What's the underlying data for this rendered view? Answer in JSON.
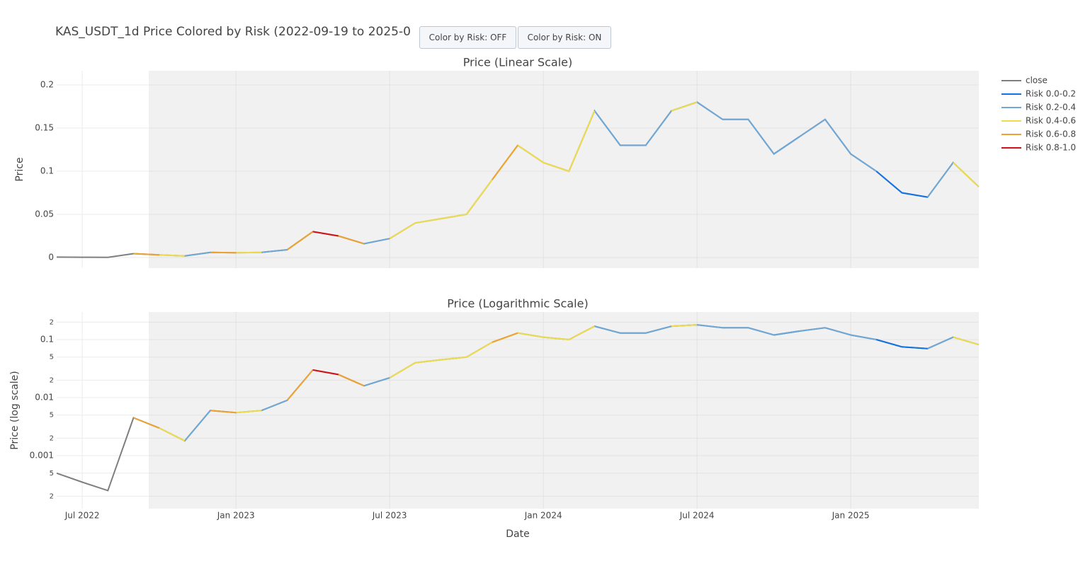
{
  "chart_data": {
    "type": "line",
    "title": "KAS_USDT_1d Price Colored by Risk (2022-09-19 to 2025-0",
    "xlabel": "Date",
    "x": [
      "2022-06",
      "2022-07",
      "2022-08",
      "2022-09",
      "2022-10",
      "2022-11",
      "2022-12",
      "2023-01",
      "2023-02",
      "2023-03",
      "2023-04",
      "2023-05",
      "2023-06",
      "2023-07",
      "2023-08",
      "2023-09",
      "2023-10",
      "2023-11",
      "2023-12",
      "2024-01",
      "2024-02",
      "2024-03",
      "2024-04",
      "2024-05",
      "2024-06",
      "2024-07",
      "2024-08",
      "2024-09",
      "2024-10",
      "2024-11",
      "2024-12",
      "2025-01",
      "2025-02",
      "2025-03",
      "2025-04",
      "2025-05",
      "2025-06"
    ],
    "xlim": [
      "2022-06",
      "2025-06"
    ],
    "xticks": [
      {
        "value": "2022-07",
        "label": "Jul 2022"
      },
      {
        "value": "2023-01",
        "label": "Jan 2023"
      },
      {
        "value": "2023-07",
        "label": "Jul 2023"
      },
      {
        "value": "2024-01",
        "label": "Jan 2024"
      },
      {
        "value": "2024-07",
        "label": "Jul 2024"
      },
      {
        "value": "2025-01",
        "label": "Jan 2025"
      }
    ],
    "panels": [
      {
        "title": "Price (Linear Scale)",
        "ylabel": "Price",
        "log": false,
        "ylim": [
          -0.0123,
          0.2164
        ],
        "yticks": [
          0,
          0.05,
          0.1,
          0.15,
          0.2
        ]
      },
      {
        "title": "Price (Logarithmic Scale)",
        "ylabel": "Price (log scale)",
        "log": true,
        "ylim": [
          0.000122,
          0.299
        ],
        "yticks": [
          {
            "value": 0.0002,
            "label": "2"
          },
          {
            "value": 0.0005,
            "label": "5"
          },
          0.001,
          {
            "value": 0.002,
            "label": "2"
          },
          {
            "value": 0.005,
            "label": "5"
          },
          0.01,
          {
            "value": 0.02,
            "label": "2"
          },
          {
            "value": 0.05,
            "label": "5"
          },
          0.1,
          {
            "value": 0.2,
            "label": "2"
          }
        ]
      }
    ],
    "series": [
      {
        "name": "close",
        "color": "#7f7f7f",
        "values": [
          0.0005,
          0.00035,
          0.00025,
          0.0045,
          0.003,
          0.0018,
          0.006,
          0.0055,
          0.006,
          0.009,
          0.03,
          0.025,
          0.016,
          0.022,
          0.04,
          0.045,
          0.05,
          0.09,
          0.13,
          0.11,
          0.1,
          0.17,
          0.13,
          0.13,
          0.17,
          0.18,
          0.16,
          0.16,
          0.12,
          0.14,
          0.16,
          0.12,
          0.1,
          0.075,
          0.07,
          0.11,
          0.082
        ]
      },
      {
        "name": "Risk 0.0-0.2",
        "color": "#1173e6",
        "values": [
          null,
          null,
          null,
          null,
          null,
          null,
          null,
          null,
          null,
          null,
          null,
          null,
          null,
          null,
          null,
          null,
          null,
          null,
          null,
          null,
          null,
          null,
          null,
          null,
          null,
          null,
          null,
          null,
          0.12,
          0.14,
          null,
          null,
          0.1,
          0.075,
          0.07,
          null,
          null
        ]
      },
      {
        "name": "Risk 0.2-0.4",
        "color": "#6fa8d6",
        "values": [
          null,
          null,
          null,
          null,
          null,
          0.0018,
          0.006,
          null,
          0.006,
          0.009,
          null,
          null,
          0.016,
          0.022,
          null,
          null,
          null,
          null,
          null,
          null,
          null,
          0.17,
          0.13,
          0.13,
          0.17,
          0.18,
          0.16,
          0.16,
          0.12,
          0.14,
          0.16,
          0.12,
          0.1,
          null,
          0.07,
          0.11,
          null
        ]
      },
      {
        "name": "Risk 0.4-0.6",
        "color": "#eedd4a",
        "values": [
          null,
          null,
          null,
          null,
          0.003,
          0.0018,
          null,
          0.0055,
          0.006,
          null,
          null,
          null,
          null,
          0.022,
          0.04,
          0.045,
          0.05,
          0.09,
          0.13,
          0.11,
          0.1,
          0.17,
          null,
          null,
          0.17,
          0.18,
          null,
          null,
          null,
          null,
          null,
          null,
          null,
          null,
          null,
          0.11,
          0.082
        ]
      },
      {
        "name": "Risk 0.6-0.8",
        "color": "#eea232",
        "values": [
          null,
          null,
          null,
          0.0045,
          0.003,
          null,
          0.006,
          0.0055,
          null,
          0.009,
          0.03,
          0.025,
          0.016,
          null,
          null,
          null,
          null,
          0.09,
          0.13,
          null,
          null,
          null,
          null,
          null,
          null,
          null,
          null,
          null,
          null,
          null,
          null,
          null,
          null,
          null,
          null,
          null,
          null
        ]
      },
      {
        "name": "Risk 0.8-1.0",
        "color": "#d0121f",
        "values": [
          null,
          null,
          null,
          null,
          null,
          null,
          null,
          null,
          null,
          null,
          0.03,
          0.025,
          null,
          null,
          null,
          null,
          null,
          null,
          null,
          null,
          null,
          null,
          null,
          null,
          null,
          null,
          null,
          null,
          null,
          null,
          null,
          null,
          null,
          null,
          null,
          null,
          null
        ]
      }
    ]
  },
  "buttons": [
    "Color by Risk: OFF",
    "Color by Risk: ON"
  ]
}
